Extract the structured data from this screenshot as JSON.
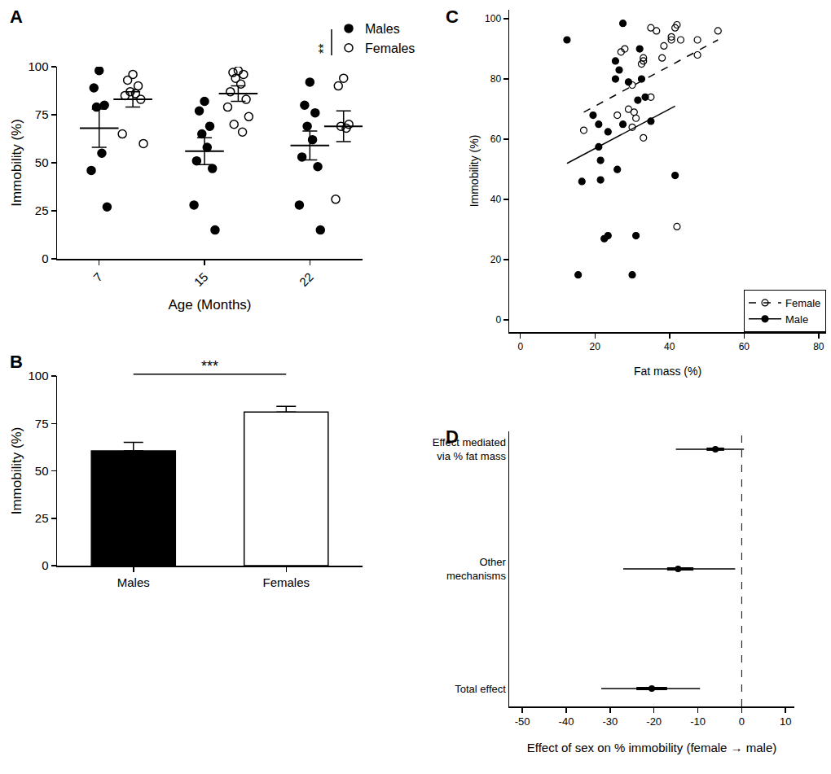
{
  "chart_data": [
    {
      "type": "scatter",
      "title": "A",
      "x_label": "Age (Months)",
      "y_label": "Immobility (%)",
      "categories": [
        "7",
        "15",
        "22"
      ],
      "series": [
        {
          "name": "Males",
          "color": "#000000",
          "marker": "filled circle",
          "values": [
            [
              98,
              89,
              80,
              79,
              55,
              46,
              27
            ],
            [
              82,
              77,
              69,
              65,
              58,
              51,
              47,
              28,
              15
            ],
            [
              92,
              80,
              76,
              69,
              62,
              53,
              48,
              28,
              15
            ]
          ],
          "mean": [
            68,
            56,
            59
          ],
          "error": [
            10,
            7,
            7.5
          ]
        },
        {
          "name": "Females",
          "color": "#000000",
          "marker": "open circle",
          "values": [
            [
              96,
              93,
              90,
              87,
              86,
              85,
              83,
              65,
              60
            ],
            [
              98,
              97,
              96,
              94,
              91,
              87,
              83,
              79,
              74,
              70,
              66
            ],
            [
              94,
              90,
              70,
              69,
              68,
              31
            ]
          ],
          "mean": [
            83,
            86,
            69
          ],
          "error": [
            4,
            4,
            8
          ]
        }
      ],
      "ylim": [
        0,
        100
      ],
      "yticks": [
        0,
        25,
        50,
        75,
        100
      ],
      "annotations": [
        "**"
      ],
      "legend": "top right",
      "grid": false
    },
    {
      "type": "bar",
      "title": "B",
      "y_label": "Immobility (%)",
      "categories": [
        "Males",
        "Females"
      ],
      "values": [
        60.5,
        81
      ],
      "error": [
        4.5,
        3
      ],
      "colors": [
        "#000000",
        "#ffffff"
      ],
      "ylim": [
        0,
        100
      ],
      "yticks": [
        0,
        25,
        50,
        75,
        100
      ],
      "annotations": [
        "***"
      ],
      "grid": false
    },
    {
      "type": "scatter",
      "title": "C",
      "x_label": "Fat mass (%)",
      "y_label": "Immobility (%)",
      "series": [
        {
          "name": "Female",
          "color": "#000000",
          "marker": "open circle",
          "line_style": "dashed",
          "x": [
            17,
            27,
            28,
            30,
            29,
            30.5,
            31,
            30,
            26,
            32.5,
            33,
            33,
            35,
            36.5,
            35,
            38,
            38.5,
            40.5,
            40.5,
            41.5,
            42,
            43,
            47.5,
            47.5,
            53,
            33,
            42
          ],
          "y": [
            63,
            89,
            90,
            78,
            70,
            69,
            67,
            64,
            68,
            85,
            86,
            87,
            97,
            96,
            74,
            87,
            91,
            94,
            93,
            97,
            98,
            93,
            93,
            88,
            96,
            60.5,
            31
          ],
          "fit_x": [
            17,
            53
          ],
          "fit_y": [
            69,
            93
          ]
        },
        {
          "name": "Male",
          "color": "#000000",
          "marker": "filled circle",
          "line_style": "solid",
          "x": [
            12.5,
            27.5,
            25.5,
            26.5,
            25.5,
            29,
            32,
            32.5,
            33.5,
            31.5,
            35,
            19.5,
            21,
            23.5,
            27.5,
            21,
            21.5,
            21.5,
            16.5,
            26,
            41.5,
            23.5,
            22.5,
            31,
            30,
            15.5
          ],
          "y": [
            93,
            98.5,
            86,
            83,
            80,
            79,
            90,
            80,
            74,
            73,
            66,
            68,
            65,
            62.5,
            65,
            57.5,
            53,
            46.5,
            46,
            50,
            48,
            28,
            27,
            28,
            15,
            15
          ],
          "fit_x": [
            12.5,
            41.5
          ],
          "fit_y": [
            52,
            71
          ]
        }
      ],
      "xlim": [
        -3,
        82
      ],
      "xticks": [
        0,
        20,
        40,
        60,
        80
      ],
      "ylim": [
        -4,
        103
      ],
      "yticks": [
        0,
        20,
        40,
        60,
        80,
        100
      ],
      "legend": "bottom right",
      "grid": false
    },
    {
      "type": "forest",
      "title": "D",
      "x_label": "Effect of sex on % immobility (female → male)",
      "categories": [
        "Effect mediated\nvia % fat mass",
        "Other\nmechanisms",
        "Total effect"
      ],
      "values": [
        -6,
        -14.5,
        -20.5
      ],
      "inner_interval": [
        [
          -8,
          -4
        ],
        [
          -17,
          -11
        ],
        [
          -24,
          -17
        ]
      ],
      "outer_interval": [
        [
          -15,
          0.5
        ],
        [
          -27,
          -1.5
        ],
        [
          -32,
          -9.5
        ]
      ],
      "reference": 0,
      "xlim": [
        -53,
        12
      ],
      "xticks": [
        -50,
        -40,
        -30,
        -20,
        -10,
        0,
        10
      ],
      "grid": false
    }
  ]
}
